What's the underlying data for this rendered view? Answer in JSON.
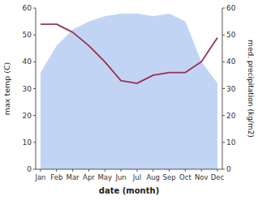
{
  "chart_data": {
    "type": "line",
    "categories": [
      "Jan",
      "Feb",
      "Mar",
      "Apr",
      "May",
      "Jun",
      "Jul",
      "Aug",
      "Sep",
      "Oct",
      "Nov",
      "Dec"
    ],
    "series": [
      {
        "type": "area",
        "color": "#aec6f0",
        "axis": "y2",
        "values": [
          36,
          46,
          52,
          55,
          57,
          58,
          58,
          57,
          58,
          55,
          40,
          32
        ]
      },
      {
        "type": "line",
        "color": "#9b3050",
        "values": [
          54,
          54,
          51,
          46,
          40,
          33,
          32,
          35,
          36,
          36,
          40,
          49
        ]
      }
    ],
    "xlabel": "date (month)",
    "ylabel": "max temp (C)",
    "y2label": "med. precipitation (kg/m2)",
    "ylim": [
      0,
      60
    ],
    "yticks": [
      0,
      10,
      20,
      30,
      40,
      50,
      60
    ],
    "y2lim": [
      0,
      60
    ],
    "y2ticks": [
      0,
      10,
      20,
      30,
      40,
      50,
      60
    ],
    "grid": false
  }
}
